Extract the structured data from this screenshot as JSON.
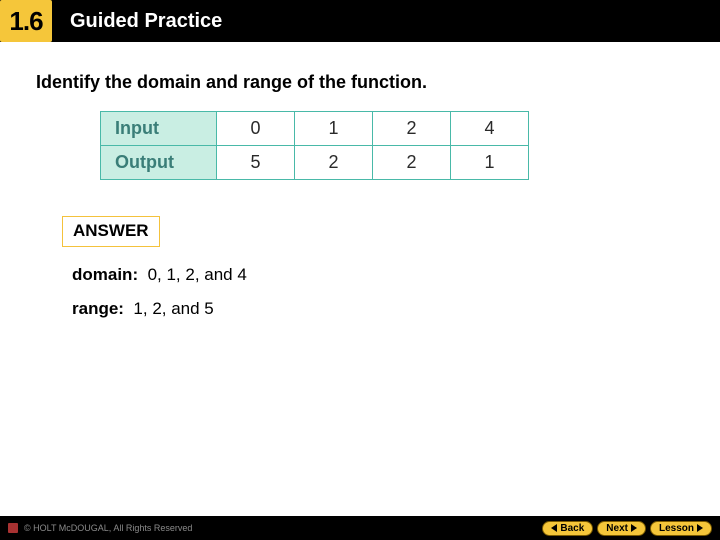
{
  "header": {
    "badge": "1.6",
    "title": "Guided Practice"
  },
  "prompt": "Identify the domain and range of the function.",
  "table": {
    "row_labels": [
      "Input",
      "Output"
    ],
    "cells": [
      [
        "0",
        "1",
        "2",
        "4"
      ],
      [
        "5",
        "2",
        "2",
        "1"
      ]
    ],
    "border_color": "#49b9a8",
    "header_bg": "#c9eee3",
    "header_fg": "#3a7e78"
  },
  "answer": {
    "chip": "ANSWER",
    "domain_label": "domain:",
    "domain_value": "0, 1, 2, and 4",
    "range_label": "range:",
    "range_value": "1, 2, and 5"
  },
  "footer": {
    "copyright": "© HOLT McDOUGAL, All Rights Reserved",
    "buttons": {
      "back": "Back",
      "next": "Next",
      "lesson": "Lesson"
    }
  }
}
